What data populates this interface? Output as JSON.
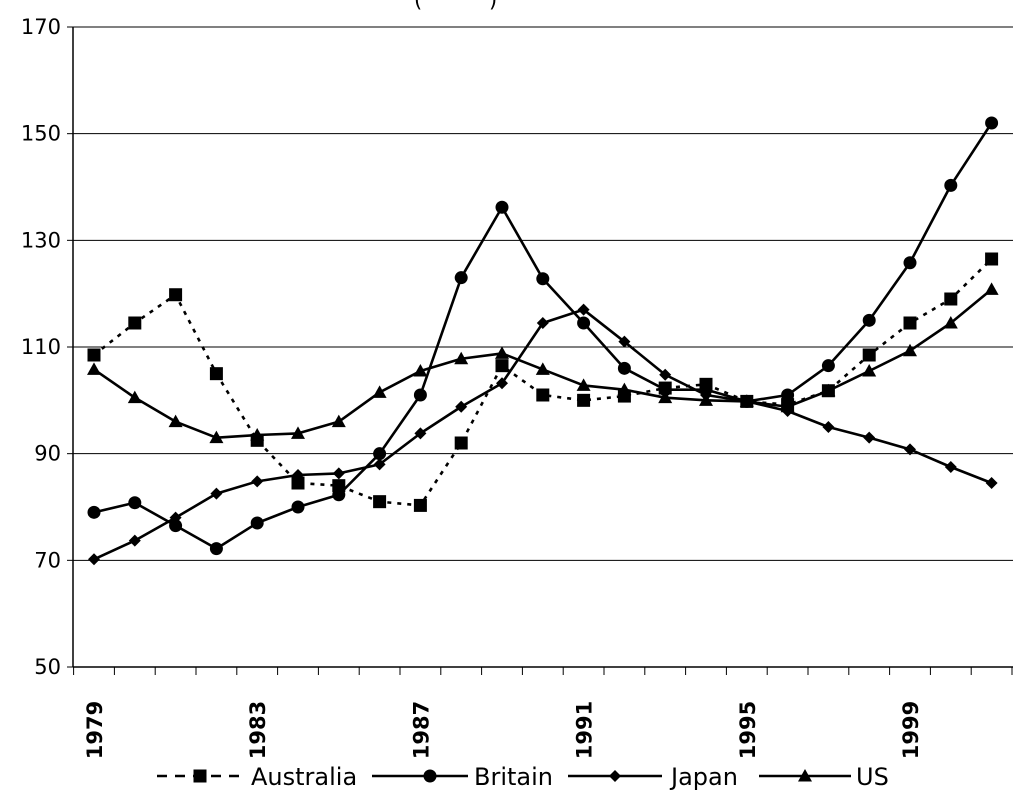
{
  "chart_data": {
    "type": "line",
    "title_fragment": "(          )",
    "x": [
      "1979",
      "1980",
      "1981",
      "1982",
      "1983",
      "1984",
      "1985",
      "1986",
      "1987",
      "1988",
      "1989",
      "1990",
      "1991",
      "1992",
      "1993",
      "1994",
      "1995",
      "1996",
      "1997",
      "1998",
      "1999",
      "2000",
      "2001"
    ],
    "x_tick_labels": [
      "1979",
      "1983",
      "1987",
      "1991",
      "1995",
      "1999"
    ],
    "y_ticks": [
      "50",
      "70",
      "90",
      "110",
      "130",
      "150",
      "170"
    ],
    "ylim": [
      50,
      170
    ],
    "grid": "horizontal",
    "legend_position": "bottom",
    "series": [
      {
        "name": "Australia",
        "marker": "square",
        "dash": "dashed",
        "values": [
          108.5,
          114.5,
          119.8,
          105.0,
          92.5,
          84.5,
          84.0,
          81.0,
          80.3,
          92.0,
          106.5,
          101.0,
          100.0,
          100.8,
          102.3,
          103.0,
          99.8,
          99.2,
          101.8,
          108.5,
          114.5,
          119.0,
          126.5
        ]
      },
      {
        "name": "Britain",
        "marker": "circle",
        "dash": "solid",
        "values": [
          79.0,
          80.8,
          76.5,
          72.2,
          77.0,
          80.0,
          82.3,
          90.0,
          101.0,
          123.0,
          136.2,
          122.8,
          114.5,
          106.0,
          102.0,
          102.0,
          99.8,
          101.0,
          106.5,
          115.0,
          125.8,
          140.3,
          152.0
        ]
      },
      {
        "name": "Japan",
        "marker": "diamond",
        "dash": "solid",
        "values": [
          70.2,
          73.7,
          78.0,
          82.5,
          84.8,
          86.0,
          86.3,
          88.0,
          93.8,
          98.8,
          103.2,
          114.5,
          117.0,
          111.0,
          104.8,
          101.0,
          99.8,
          98.0,
          95.0,
          93.0,
          90.8,
          87.5,
          84.5
        ]
      },
      {
        "name": "US",
        "marker": "triangle",
        "dash": "solid",
        "values": [
          105.8,
          100.5,
          96.0,
          93.0,
          93.5,
          93.8,
          96.0,
          101.5,
          105.5,
          107.8,
          108.8,
          105.8,
          102.8,
          102.0,
          100.5,
          100.0,
          99.8,
          98.8,
          101.8,
          105.5,
          109.3,
          114.5,
          120.8
        ]
      }
    ]
  }
}
